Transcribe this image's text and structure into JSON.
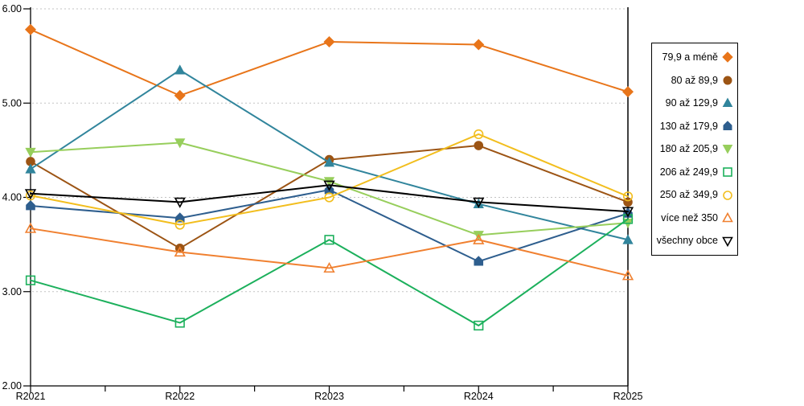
{
  "chart_data": {
    "type": "line",
    "title": "",
    "xlabel": "",
    "ylabel": "",
    "x_categories": [
      "R2021",
      "R2022",
      "R2023",
      "R2024",
      "R2025"
    ],
    "ylim": [
      2.0,
      6.0
    ],
    "y_tick_labels": [
      "6.00",
      "5.00",
      "4.00",
      "3.00",
      "2.00"
    ],
    "y_tick_values": [
      6,
      5,
      4,
      3,
      2
    ],
    "grid": "horizontal dashed",
    "legend_position": "right",
    "series": [
      {
        "name": "79,9 a méně",
        "marker": "diamond",
        "fill": "solid",
        "color": "#E8751A",
        "values": [
          5.78,
          5.08,
          5.65,
          5.62,
          5.12
        ]
      },
      {
        "name": "80 až 89,9",
        "marker": "circle",
        "fill": "solid",
        "color": "#9C5414",
        "values": [
          4.38,
          3.46,
          4.4,
          4.55,
          3.95
        ]
      },
      {
        "name": "90 až 129,9",
        "marker": "triangle-up",
        "fill": "solid",
        "color": "#31859C",
        "values": [
          4.3,
          5.35,
          4.37,
          3.93,
          3.55
        ]
      },
      {
        "name": "130 až 179,9",
        "marker": "pentagon-up",
        "fill": "solid",
        "color": "#2E5E8E",
        "values": [
          3.91,
          3.78,
          4.08,
          3.32,
          3.83
        ]
      },
      {
        "name": "180 až 205,9",
        "marker": "triangle-down",
        "fill": "solid",
        "color": "#97CE5C",
        "values": [
          4.48,
          4.58,
          4.17,
          3.6,
          3.73
        ]
      },
      {
        "name": "206 až 249,9",
        "marker": "square",
        "fill": "open",
        "color": "#1CB05C",
        "values": [
          3.12,
          2.67,
          3.55,
          2.64,
          3.77
        ]
      },
      {
        "name": "250 až 349,9",
        "marker": "circle",
        "fill": "open",
        "color": "#F2BE1E",
        "values": [
          4.02,
          3.71,
          4.0,
          4.67,
          4.01
        ]
      },
      {
        "name": "více než 350",
        "marker": "triangle-up",
        "fill": "open",
        "color": "#F08030",
        "values": [
          3.67,
          3.42,
          3.25,
          3.55,
          3.17
        ]
      },
      {
        "name": "všechny obce",
        "marker": "triangle-down",
        "fill": "open",
        "color": "#000000",
        "values": [
          4.04,
          3.95,
          4.13,
          3.95,
          3.85
        ]
      }
    ]
  },
  "colors": {
    "background": "#FFFFFF",
    "axis": "#000000",
    "gridline": "#C3C3C3",
    "legend_border": "#000000"
  }
}
